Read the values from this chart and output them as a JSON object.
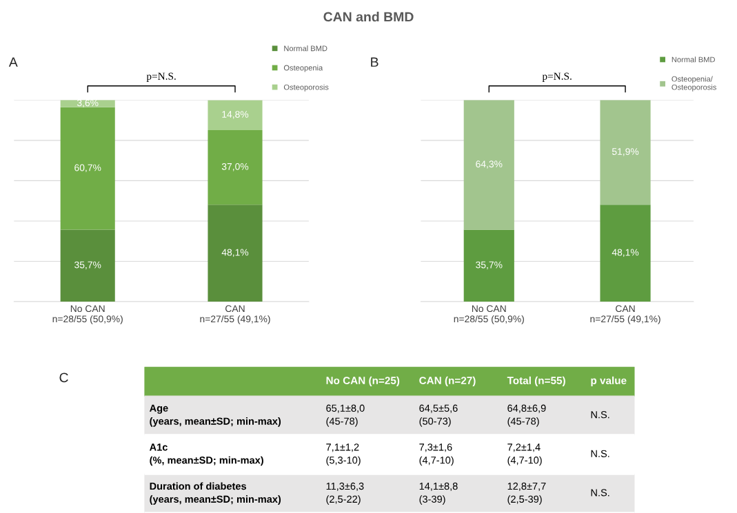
{
  "chart_data": [
    {
      "type": "bar",
      "title": "A",
      "stacked": true,
      "categories": [
        "No CAN\nn=28/55 (50,9%)",
        "CAN\nn=27/55 (49,1%)"
      ],
      "series": [
        {
          "name": "Normal BMD",
          "color": "#5a8f3c",
          "values": [
            35.7,
            48.1
          ],
          "value_labels": [
            "35,7%",
            "48,1%"
          ]
        },
        {
          "name": "Osteopenia",
          "color": "#71ad47",
          "values": [
            60.7,
            37.0
          ],
          "value_labels": [
            "60,7%",
            "37,0%"
          ]
        },
        {
          "name": "Osteoporosis",
          "color": "#a9d08e",
          "values": [
            3.6,
            14.8
          ],
          "value_labels": [
            "3,6%",
            "14,8%"
          ]
        }
      ],
      "ylim": [
        0,
        100
      ],
      "yticks": [
        {
          "value": 0,
          "label": null
        },
        {
          "value": 20,
          "label": null
        },
        {
          "value": 40,
          "label": null
        },
        {
          "value": 60,
          "label": null
        },
        {
          "value": 80,
          "label": null
        },
        {
          "value": 100,
          "label": null
        }
      ],
      "tick_labels": "x",
      "grid": "y",
      "legend": "top right",
      "annotations": [
        "CAN and BMD",
        "p=N.S."
      ]
    },
    {
      "type": "bar",
      "title": "B",
      "stacked": true,
      "categories": [
        "No CAN\nn=28/55 (50,9%)",
        "CAN\nn=27/55 (49,1%)"
      ],
      "series": [
        {
          "name": "Normal BMD",
          "color": "#5e9c40",
          "values": [
            35.7,
            48.1
          ],
          "value_labels": [
            "35,7%",
            "48,1%"
          ]
        },
        {
          "name": "Osteopenia/\nOsteoporosis",
          "color": "#a2c58e",
          "values": [
            64.3,
            51.9
          ],
          "value_labels": [
            "64,3%",
            "51,9%"
          ]
        }
      ],
      "ylim": [
        0,
        100
      ],
      "yticks": [
        {
          "value": 0,
          "label": null
        },
        {
          "value": 20,
          "label": null
        },
        {
          "value": 40,
          "label": null
        },
        {
          "value": 60,
          "label": null
        },
        {
          "value": 80,
          "label": null
        },
        {
          "value": 100,
          "label": null
        }
      ],
      "tick_labels": "x",
      "grid": "y",
      "legend": "top right",
      "annotations": [
        "p=N.S."
      ]
    },
    {
      "type": "other",
      "title": "C",
      "annotations": [
        "No CAN (n=25)",
        "CAN (n=27)",
        "Total (n=55)",
        "p value",
        "Age\n(years, mean±SD; min-max)",
        "65,1±8,0\n(45-78)",
        "64,5±5,6\n(50-73)",
        "64,8±6,9\n(45-78)",
        "N.S.",
        "A1c\n(%, mean±SD; min-max)",
        "7,1±1,2\n(5,3-10)",
        "7,3±1,6\n(4,7-10)",
        "7,2±1,4\n(4,7-10)",
        "N.S.",
        "Duration of diabetes\n(years, mean±SD; min-max)",
        "11,3±6,3\n(2,5-22)",
        "14,1±8,8\n(3-39)",
        "12,8±7,7\n(2,5-39)",
        "N.S."
      ]
    }
  ]
}
